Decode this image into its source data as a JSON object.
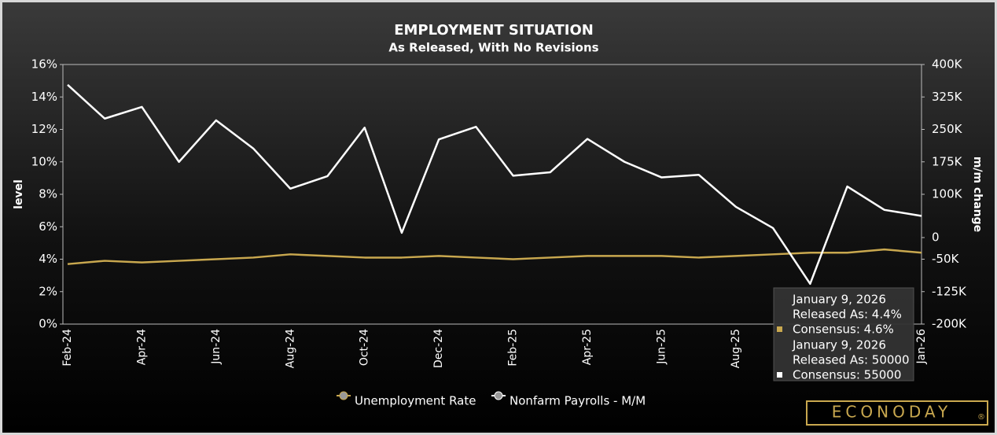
{
  "chart_data": {
    "type": "line",
    "title": "EMPLOYMENT SITUATION",
    "subtitle": "As Released, With No Revisions",
    "y_label": "level",
    "y2_label": "m/m change",
    "categories": [
      "Feb-24",
      null,
      "Apr-24",
      null,
      "Jun-24",
      null,
      "Aug-24",
      null,
      "Oct-24",
      null,
      "Dec-24",
      null,
      "Feb-25",
      null,
      "Apr-25",
      null,
      "Jun-25",
      null,
      "Aug-25",
      null,
      null,
      null,
      null,
      "Jan-26"
    ],
    "series": [
      {
        "name": "Unemployment Rate",
        "color": "#c9a84f",
        "axis": "y",
        "values": [
          3.7,
          3.9,
          3.8,
          3.9,
          4.0,
          4.1,
          4.3,
          4.2,
          4.1,
          4.1,
          4.2,
          4.1,
          4.0,
          4.1,
          4.2,
          4.2,
          4.2,
          4.1,
          4.2,
          4.3,
          4.4,
          4.4,
          4.6,
          4.4
        ]
      },
      {
        "name": "Nonfarm Payrolls - M/M",
        "color": "#ffffff",
        "axis": "y2",
        "values": [
          353000,
          275000,
          302000,
          175000,
          271000,
          206000,
          113000,
          142000,
          254000,
          11000,
          227000,
          256000,
          143000,
          151000,
          228000,
          175000,
          139000,
          145000,
          71000,
          22000,
          -107000,
          118000,
          64000,
          50000
        ]
      }
    ],
    "ylim": [
      0,
      16
    ],
    "yticks": [
      {
        "value": 0,
        "label": "0%"
      },
      {
        "value": 2,
        "label": "2%"
      },
      {
        "value": 4,
        "label": "4%"
      },
      {
        "value": 6,
        "label": "6%"
      },
      {
        "value": 8,
        "label": "8%"
      },
      {
        "value": 10,
        "label": "10%"
      },
      {
        "value": 12,
        "label": "12%"
      },
      {
        "value": 14,
        "label": "14%"
      },
      {
        "value": 16,
        "label": "16%"
      }
    ],
    "y2lim": [
      -200000,
      400000
    ],
    "y2ticks": [
      {
        "value": -200000,
        "label": "-200K"
      },
      {
        "value": -125000,
        "label": "-125K"
      },
      {
        "value": -50000,
        "label": "-50K"
      },
      0,
      {
        "value": 100000,
        "label": "100K"
      },
      {
        "value": 175000,
        "label": "175K"
      },
      {
        "value": 250000,
        "label": "250K"
      },
      {
        "value": 325000,
        "label": "325K"
      },
      {
        "value": 400000,
        "label": "400K"
      }
    ],
    "tooltip": [
      {
        "date": "January 9, 2026",
        "released": "Released As: 4.4%",
        "consensus": "Consensus: 4.6%"
      },
      {
        "date": "January 9, 2026",
        "released": "Released As: 50000",
        "consensus": "Consensus: 55000"
      }
    ],
    "brand": "ECONODAY",
    "brand_mark": "®"
  }
}
